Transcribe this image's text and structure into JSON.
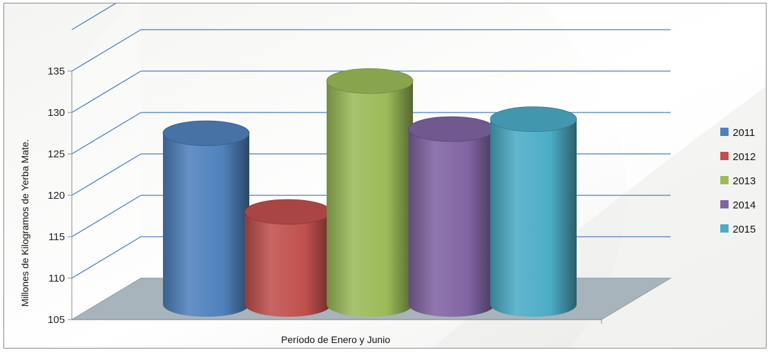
{
  "chart_data": {
    "type": "bar",
    "categories": [
      "Período de Enero y Junio"
    ],
    "series": [
      {
        "name": "2011",
        "values": [
          126.0
        ]
      },
      {
        "name": "2012",
        "values": [
          116.5
        ]
      },
      {
        "name": "2013",
        "values": [
          132.3
        ]
      },
      {
        "name": "2014",
        "values": [
          126.5
        ]
      },
      {
        "name": "2015",
        "values": [
          127.7
        ]
      }
    ],
    "xlabel": "Período de Enero y Junio",
    "ylabel": "Millones de Kilogramos de Yerba Mate.",
    "ylim": [
      105,
      135
    ],
    "yticks": [
      105,
      110,
      115,
      120,
      125,
      130,
      135
    ],
    "grid": true,
    "legend_position": "right",
    "colors": {
      "2011": "#4f81bd",
      "2012": "#c0504d",
      "2013": "#9bbb59",
      "2014": "#8064a2",
      "2015": "#4bacc6",
      "gridline": "#4a7ebb",
      "floor": "#a8b4bc"
    }
  }
}
